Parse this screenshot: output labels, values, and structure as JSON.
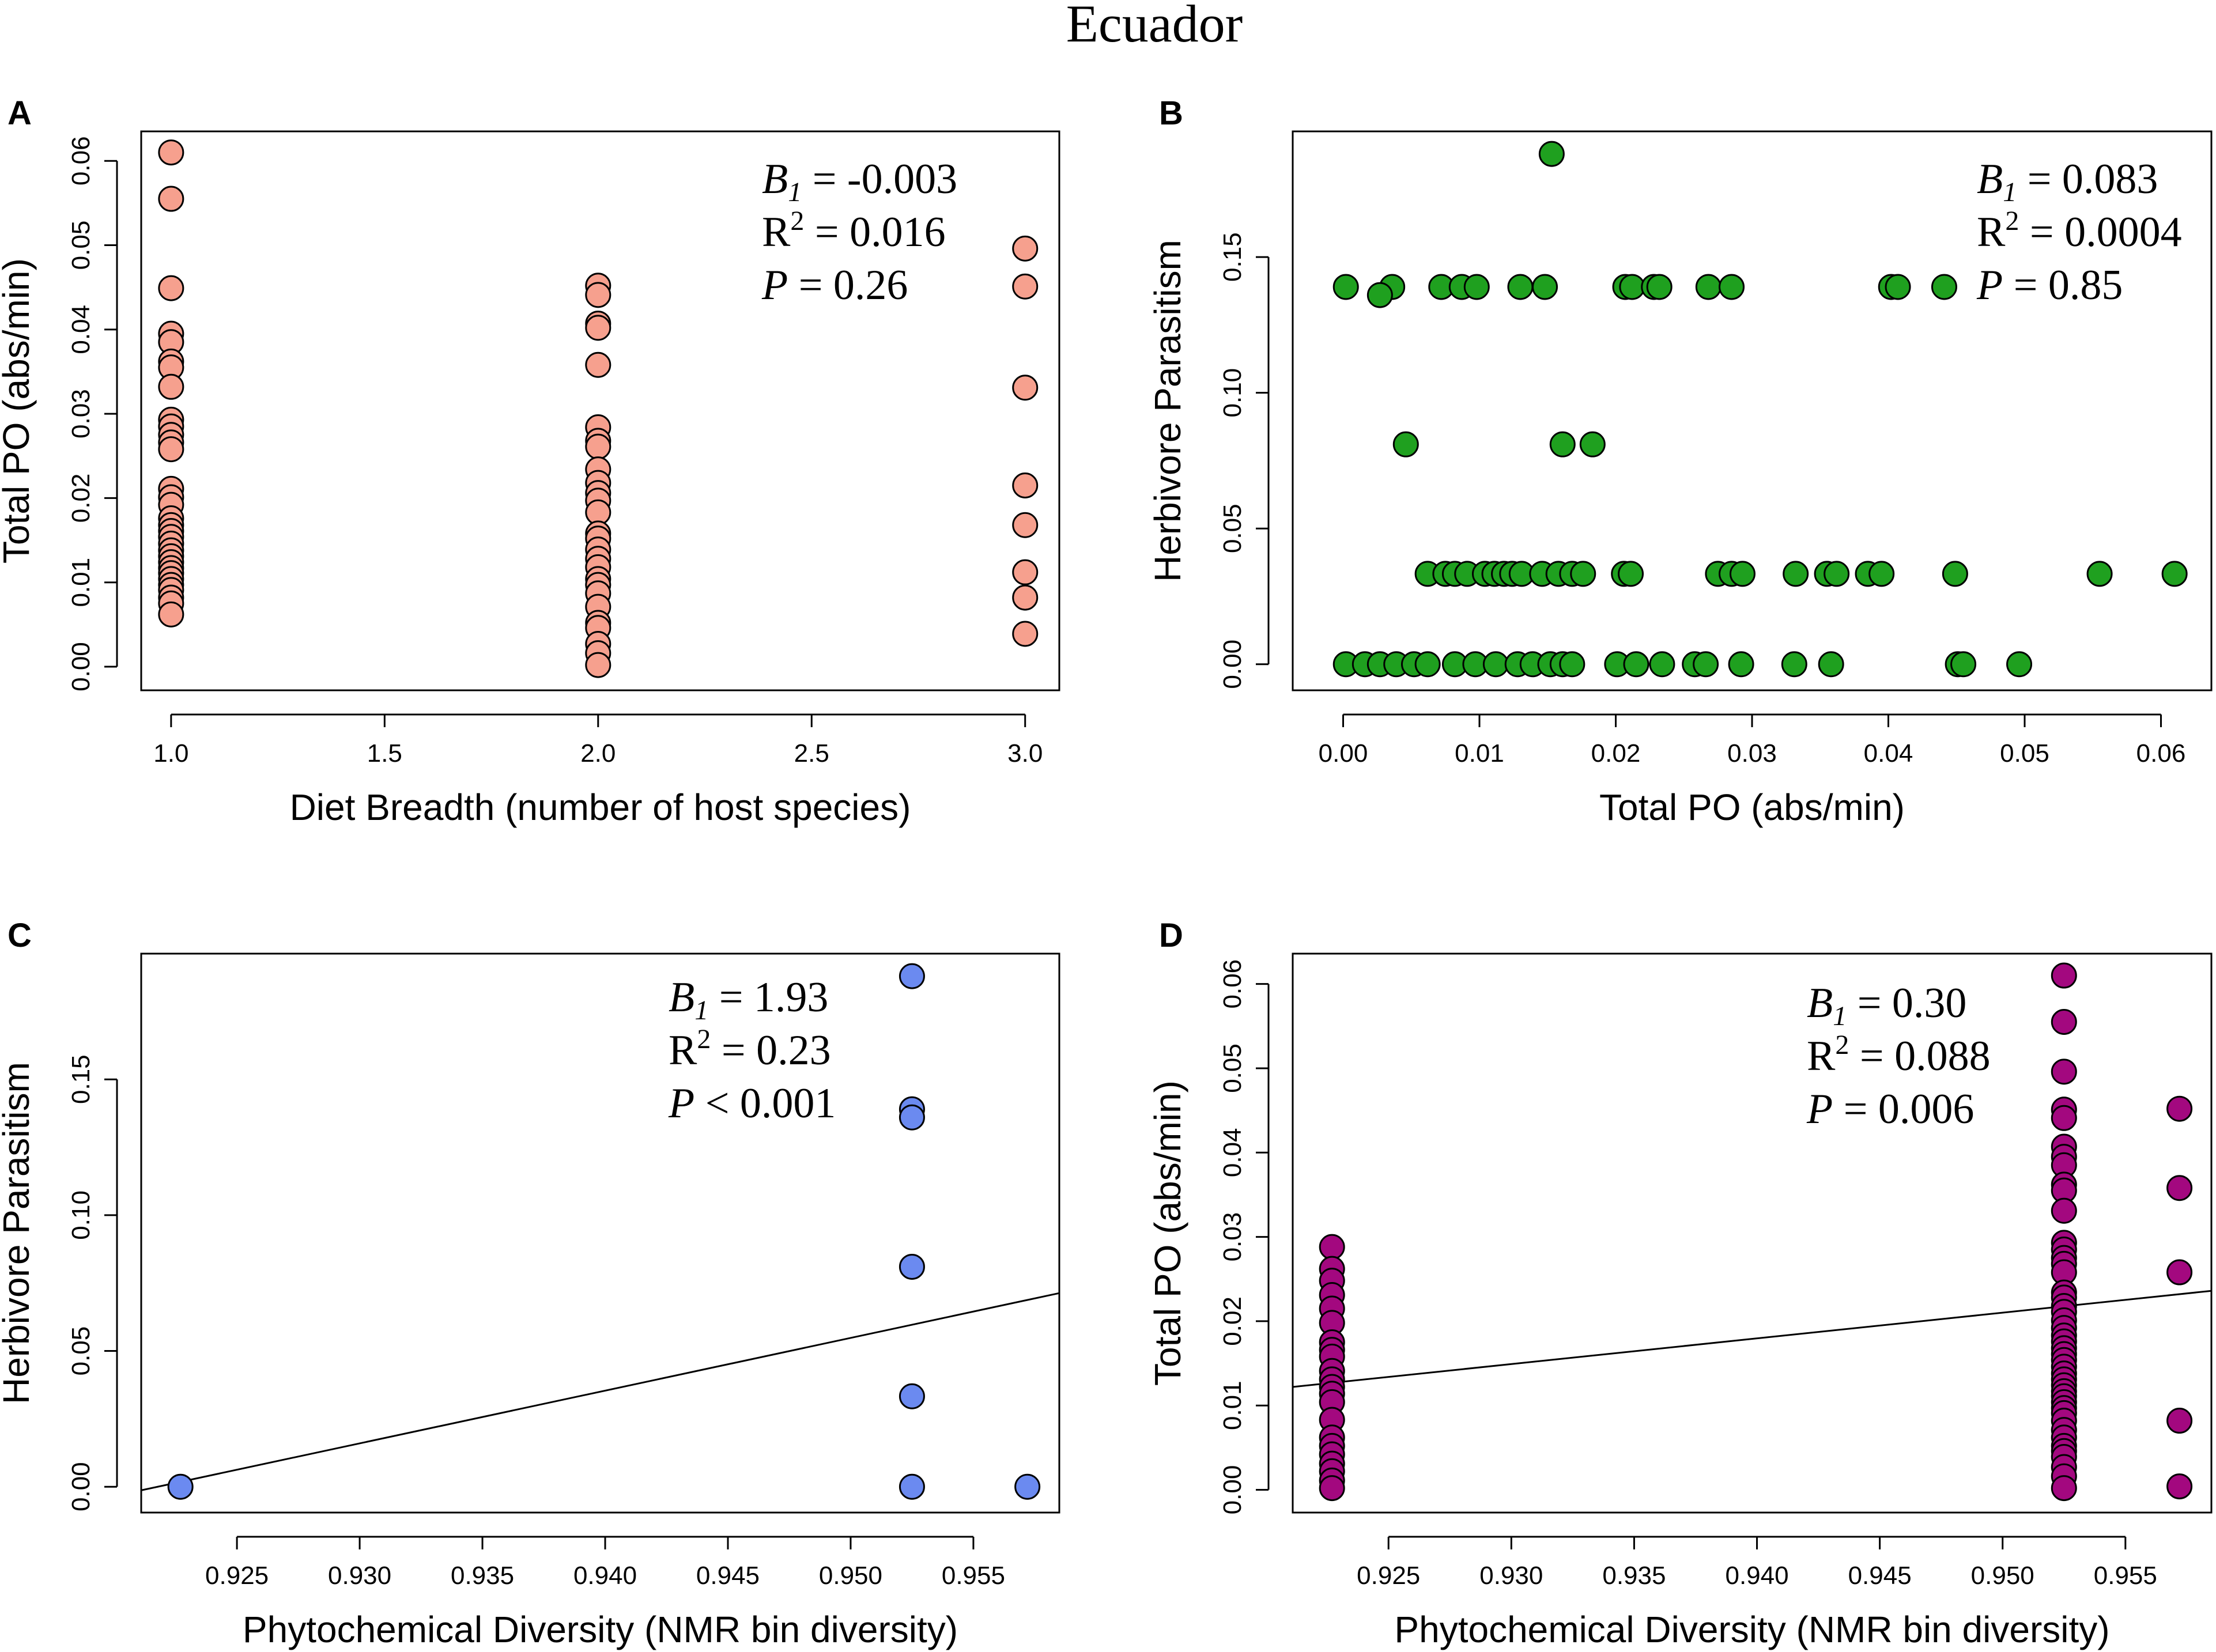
{
  "figure_title": "Ecuador",
  "chart_data": [
    {
      "panel": "A",
      "type": "scatter",
      "color": "#F6A08E",
      "xlabel": "Diet Breadth (number of host species)",
      "ylabel": "Total PO (abs/min)",
      "xlim": [
        0.93,
        3.08
      ],
      "ylim": [
        -0.0028,
        0.0635
      ],
      "xticks": [
        1.0,
        1.5,
        2.0,
        2.5,
        3.0
      ],
      "xtick_labels": [
        "1.0",
        "1.5",
        "2.0",
        "2.5",
        "3.0"
      ],
      "yticks": [
        0.0,
        0.01,
        0.02,
        0.03,
        0.04,
        0.05,
        0.06
      ],
      "ytick_labels": [
        "0.00",
        "0.01",
        "0.02",
        "0.03",
        "0.04",
        "0.05",
        "0.06"
      ],
      "stats": {
        "b_label": "B",
        "b_sub": "1",
        "b_value": "= -0.003",
        "r2_label": "R",
        "r2_sup": "2",
        "r2_value": "= 0.016",
        "p_label": "P",
        "p_value": "= 0.26"
      },
      "points": [
        [
          1,
          0.061
        ],
        [
          1,
          0.0555
        ],
        [
          1,
          0.0449
        ],
        [
          1,
          0.0395
        ],
        [
          1,
          0.0385
        ],
        [
          1,
          0.0362
        ],
        [
          1,
          0.0355
        ],
        [
          1,
          0.0332
        ],
        [
          1,
          0.0293
        ],
        [
          1,
          0.0285
        ],
        [
          1,
          0.0275
        ],
        [
          1,
          0.0266
        ],
        [
          1,
          0.0258
        ],
        [
          1,
          0.0211
        ],
        [
          1,
          0.0201
        ],
        [
          1,
          0.0192
        ],
        [
          1,
          0.0176
        ],
        [
          1,
          0.0168
        ],
        [
          1,
          0.0161
        ],
        [
          1,
          0.0154
        ],
        [
          1,
          0.0146
        ],
        [
          1,
          0.0138
        ],
        [
          1,
          0.0131
        ],
        [
          1,
          0.0124
        ],
        [
          1,
          0.0117
        ],
        [
          1,
          0.0111
        ],
        [
          1,
          0.0104
        ],
        [
          1,
          0.0097
        ],
        [
          1,
          0.0091
        ],
        [
          1,
          0.0082
        ],
        [
          1,
          0.0075
        ],
        [
          1,
          0.0062
        ],
        [
          2,
          0.0452
        ],
        [
          2,
          0.0441
        ],
        [
          2,
          0.0407
        ],
        [
          2,
          0.0402
        ],
        [
          2,
          0.0358
        ],
        [
          2,
          0.0284
        ],
        [
          2,
          0.0268
        ],
        [
          2,
          0.0261
        ],
        [
          2,
          0.0234
        ],
        [
          2,
          0.0218
        ],
        [
          2,
          0.0206
        ],
        [
          2,
          0.0197
        ],
        [
          2,
          0.0183
        ],
        [
          2,
          0.0158
        ],
        [
          2,
          0.0152
        ],
        [
          2,
          0.0139
        ],
        [
          2,
          0.0128
        ],
        [
          2,
          0.0118
        ],
        [
          2,
          0.0104
        ],
        [
          2,
          0.0097
        ],
        [
          2,
          0.0087
        ],
        [
          2,
          0.0071
        ],
        [
          2,
          0.0052
        ],
        [
          2,
          0.0046
        ],
        [
          2,
          0.0027
        ],
        [
          2,
          0.0016
        ],
        [
          2,
          0.0002
        ],
        [
          3,
          0.0496
        ],
        [
          3,
          0.0451
        ],
        [
          3,
          0.0331
        ],
        [
          3,
          0.0215
        ],
        [
          3,
          0.0168
        ],
        [
          3,
          0.0112
        ],
        [
          3,
          0.0082
        ],
        [
          3,
          0.0039
        ]
      ]
    },
    {
      "panel": "B",
      "type": "scatter",
      "color": "#1FA01F",
      "xlabel": "Total PO (abs/min)",
      "ylabel": "Herbivore Parasitism",
      "xlim": [
        -0.0037,
        0.0637
      ],
      "ylim": [
        -0.0096,
        0.1963
      ],
      "xticks": [
        0.0,
        0.01,
        0.02,
        0.03,
        0.04,
        0.05,
        0.06
      ],
      "xtick_labels": [
        "0.00",
        "0.01",
        "0.02",
        "0.03",
        "0.04",
        "0.05",
        "0.06"
      ],
      "yticks": [
        0.0,
        0.05,
        0.1,
        0.15
      ],
      "ytick_labels": [
        "0.00",
        "0.05",
        "0.10",
        "0.15"
      ],
      "stats": {
        "b_label": "B",
        "b_sub": "1",
        "b_value": "= 0.083",
        "r2_label": "R",
        "r2_sup": "2",
        "r2_value": "= 0.0004",
        "p_label": "P",
        "p_value": "= 0.85"
      },
      "points": [
        [
          0.0153,
          0.188
        ],
        [
          0.0002,
          0.139
        ],
        [
          0.0036,
          0.139
        ],
        [
          0.0072,
          0.139
        ],
        [
          0.0087,
          0.139
        ],
        [
          0.0098,
          0.139
        ],
        [
          0.013,
          0.139
        ],
        [
          0.0148,
          0.139
        ],
        [
          0.0207,
          0.139
        ],
        [
          0.0212,
          0.139
        ],
        [
          0.0228,
          0.139
        ],
        [
          0.0232,
          0.139
        ],
        [
          0.0268,
          0.139
        ],
        [
          0.0285,
          0.139
        ],
        [
          0.0402,
          0.139
        ],
        [
          0.0407,
          0.139
        ],
        [
          0.0441,
          0.139
        ],
        [
          0.0027,
          0.136
        ],
        [
          0.0046,
          0.081
        ],
        [
          0.0161,
          0.081
        ],
        [
          0.0183,
          0.081
        ],
        [
          0.0062,
          0.0333
        ],
        [
          0.0075,
          0.0333
        ],
        [
          0.0082,
          0.0333
        ],
        [
          0.0091,
          0.0333
        ],
        [
          0.0104,
          0.0333
        ],
        [
          0.0111,
          0.0333
        ],
        [
          0.0118,
          0.0333
        ],
        [
          0.0124,
          0.0333
        ],
        [
          0.0131,
          0.0333
        ],
        [
          0.0146,
          0.0333
        ],
        [
          0.0158,
          0.0333
        ],
        [
          0.0168,
          0.0333
        ],
        [
          0.0176,
          0.0333
        ],
        [
          0.0206,
          0.0333
        ],
        [
          0.0211,
          0.0333
        ],
        [
          0.0275,
          0.0333
        ],
        [
          0.0285,
          0.0333
        ],
        [
          0.0293,
          0.0333
        ],
        [
          0.0332,
          0.0333
        ],
        [
          0.0355,
          0.0333
        ],
        [
          0.0362,
          0.0333
        ],
        [
          0.0385,
          0.0333
        ],
        [
          0.0395,
          0.0333
        ],
        [
          0.0449,
          0.0333
        ],
        [
          0.0555,
          0.0333
        ],
        [
          0.061,
          0.0333
        ],
        [
          0.0002,
          0.0
        ],
        [
          0.0016,
          0.0
        ],
        [
          0.0027,
          0.0
        ],
        [
          0.0039,
          0.0
        ],
        [
          0.0052,
          0.0
        ],
        [
          0.0062,
          0.0
        ],
        [
          0.0082,
          0.0
        ],
        [
          0.0097,
          0.0
        ],
        [
          0.0112,
          0.0
        ],
        [
          0.0128,
          0.0
        ],
        [
          0.0139,
          0.0
        ],
        [
          0.0152,
          0.0
        ],
        [
          0.0161,
          0.0
        ],
        [
          0.0168,
          0.0
        ],
        [
          0.0201,
          0.0
        ],
        [
          0.0215,
          0.0
        ],
        [
          0.0234,
          0.0
        ],
        [
          0.0258,
          0.0
        ],
        [
          0.0266,
          0.0
        ],
        [
          0.0292,
          0.0
        ],
        [
          0.0331,
          0.0
        ],
        [
          0.0358,
          0.0
        ],
        [
          0.0451,
          0.0
        ],
        [
          0.0455,
          0.0
        ],
        [
          0.0496,
          0.0
        ]
      ]
    },
    {
      "panel": "C",
      "type": "scatter",
      "color": "#6B8AF0",
      "xlabel": "Phytochemical Diversity (NMR bin diversity)",
      "ylabel": "Herbivore Parasitism",
      "xlim": [
        0.9211,
        0.9585
      ],
      "ylim": [
        -0.0095,
        0.1963
      ],
      "xticks": [
        0.925,
        0.93,
        0.935,
        0.94,
        0.945,
        0.95,
        0.955
      ],
      "xtick_labels": [
        "0.925",
        "0.930",
        "0.935",
        "0.940",
        "0.945",
        "0.950",
        "0.955"
      ],
      "yticks": [
        0.0,
        0.05,
        0.1,
        0.15
      ],
      "ytick_labels": [
        "0.00",
        "0.05",
        "0.10",
        "0.15"
      ],
      "stats": {
        "b_label": "B",
        "b_sub": "1",
        "b_value": "= 1.93",
        "r2_label": "R",
        "r2_sup": "2",
        "r2_value": "= 0.23",
        "p_label": "P",
        "p_value": "< 0.001"
      },
      "regression_line": [
        [
          0.9211,
          -0.0013
        ],
        [
          0.9585,
          0.0713
        ]
      ],
      "points": [
        [
          0.9227,
          0.0
        ],
        [
          0.9525,
          0.188
        ],
        [
          0.9525,
          0.139
        ],
        [
          0.9525,
          0.136
        ],
        [
          0.9525,
          0.081
        ],
        [
          0.9525,
          0.0333
        ],
        [
          0.9525,
          0.0
        ],
        [
          0.9572,
          0.0
        ]
      ]
    },
    {
      "panel": "D",
      "type": "scatter",
      "color": "#A3087F",
      "xlabel": "Phytochemical Diversity (NMR bin diversity)",
      "ylabel": "Total PO (abs/min)",
      "xlim": [
        0.9211,
        0.9585
      ],
      "ylim": [
        -0.0027,
        0.0636
      ],
      "xticks": [
        0.925,
        0.93,
        0.935,
        0.94,
        0.945,
        0.95,
        0.955
      ],
      "xtick_labels": [
        "0.925",
        "0.930",
        "0.935",
        "0.940",
        "0.945",
        "0.950",
        "0.955"
      ],
      "yticks": [
        0.0,
        0.01,
        0.02,
        0.03,
        0.04,
        0.05,
        0.06
      ],
      "ytick_labels": [
        "0.00",
        "0.01",
        "0.02",
        "0.03",
        "0.04",
        "0.05",
        "0.06"
      ],
      "stats": {
        "b_label": "B",
        "b_sub": "1",
        "b_value": "= 0.30",
        "r2_label": "R",
        "r2_sup": "2",
        "r2_value": "= 0.088",
        "p_label": "P",
        "p_value": "= 0.006"
      },
      "regression_line": [
        [
          0.9211,
          0.0122
        ],
        [
          0.9585,
          0.0236
        ]
      ],
      "points": [
        [
          0.9227,
          0.0288
        ],
        [
          0.9227,
          0.0262
        ],
        [
          0.9227,
          0.0248
        ],
        [
          0.9227,
          0.0231
        ],
        [
          0.9227,
          0.0215
        ],
        [
          0.9227,
          0.0198
        ],
        [
          0.9227,
          0.0175
        ],
        [
          0.9227,
          0.0166
        ],
        [
          0.9227,
          0.0158
        ],
        [
          0.9227,
          0.0141
        ],
        [
          0.9227,
          0.0131
        ],
        [
          0.9227,
          0.0122
        ],
        [
          0.9227,
          0.0114
        ],
        [
          0.9227,
          0.0104
        ],
        [
          0.9227,
          0.0083
        ],
        [
          0.9227,
          0.0062
        ],
        [
          0.9227,
          0.0052
        ],
        [
          0.9227,
          0.0042
        ],
        [
          0.9227,
          0.0031
        ],
        [
          0.9227,
          0.0022
        ],
        [
          0.9227,
          0.0011
        ],
        [
          0.9227,
          0.0002
        ],
        [
          0.9525,
          0.061
        ],
        [
          0.9525,
          0.0555
        ],
        [
          0.9525,
          0.0496
        ],
        [
          0.9525,
          0.0451
        ],
        [
          0.9525,
          0.0441
        ],
        [
          0.9525,
          0.0407
        ],
        [
          0.9525,
          0.0395
        ],
        [
          0.9525,
          0.0385
        ],
        [
          0.9525,
          0.0362
        ],
        [
          0.9525,
          0.0355
        ],
        [
          0.9525,
          0.0331
        ],
        [
          0.9525,
          0.0293
        ],
        [
          0.9525,
          0.0285
        ],
        [
          0.9525,
          0.0275
        ],
        [
          0.9525,
          0.0268
        ],
        [
          0.9525,
          0.0258
        ],
        [
          0.9525,
          0.0234
        ],
        [
          0.9525,
          0.0228
        ],
        [
          0.9525,
          0.0218
        ],
        [
          0.9525,
          0.0211
        ],
        [
          0.9525,
          0.0201
        ],
        [
          0.9525,
          0.0192
        ],
        [
          0.9525,
          0.0183
        ],
        [
          0.9525,
          0.0176
        ],
        [
          0.9525,
          0.0168
        ],
        [
          0.9525,
          0.0161
        ],
        [
          0.9525,
          0.0154
        ],
        [
          0.9525,
          0.0146
        ],
        [
          0.9525,
          0.0138
        ],
        [
          0.9525,
          0.0131
        ],
        [
          0.9525,
          0.0124
        ],
        [
          0.9525,
          0.0117
        ],
        [
          0.9525,
          0.0111
        ],
        [
          0.9525,
          0.0104
        ],
        [
          0.9525,
          0.0097
        ],
        [
          0.9525,
          0.0091
        ],
        [
          0.9525,
          0.0082
        ],
        [
          0.9525,
          0.0071
        ],
        [
          0.9525,
          0.0062
        ],
        [
          0.9525,
          0.0052
        ],
        [
          0.9525,
          0.0046
        ],
        [
          0.9525,
          0.0039
        ],
        [
          0.9525,
          0.0027
        ],
        [
          0.9525,
          0.0016
        ],
        [
          0.9525,
          0.0002
        ],
        [
          0.9572,
          0.0452
        ],
        [
          0.9572,
          0.0358
        ],
        [
          0.9572,
          0.0258
        ],
        [
          0.9572,
          0.0082
        ],
        [
          0.9572,
          0.0004
        ]
      ]
    }
  ]
}
